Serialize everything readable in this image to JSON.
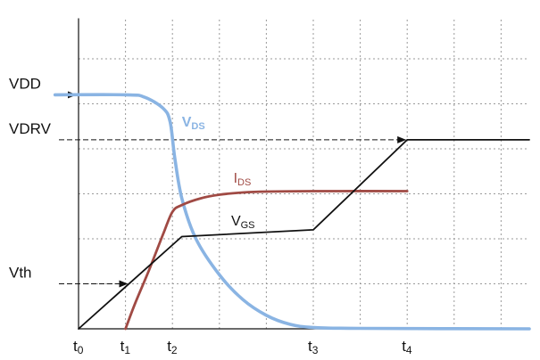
{
  "chart_data": {
    "type": "line",
    "title": "",
    "xlabel": "",
    "ylabel": "",
    "grid": true,
    "xlim": [
      0,
      9.6
    ],
    "ylim": [
      0,
      6.9
    ],
    "x_ticks": [
      {
        "label": "t",
        "sub": "0",
        "x": 0
      },
      {
        "label": "t",
        "sub": "1",
        "x": 1
      },
      {
        "label": "t",
        "sub": "2",
        "x": 2
      },
      {
        "label": "t",
        "sub": "3",
        "x": 5
      },
      {
        "label": "t",
        "sub": "4",
        "x": 7
      }
    ],
    "y_levels": [
      {
        "label": "VDD",
        "y": 5.2,
        "arrow": true,
        "guide": false
      },
      {
        "label": "VDRV",
        "y": 4.2,
        "arrow": false,
        "guide": true
      },
      {
        "label": "Vth",
        "y": 1.0,
        "arrow": true,
        "guide": true
      }
    ],
    "series": [
      {
        "name": "V",
        "sub": "DS",
        "color": "#8ab4e3",
        "label_at": [
          2.2,
          4.5
        ],
        "points": [
          [
            -0.5,
            5.2
          ],
          [
            1.0,
            5.2
          ],
          [
            1.4,
            5.15
          ],
          [
            1.8,
            4.9
          ],
          [
            1.95,
            4.6
          ],
          [
            2.05,
            3.8
          ],
          [
            2.2,
            2.9
          ],
          [
            2.5,
            2.0
          ],
          [
            3.0,
            1.2
          ],
          [
            3.5,
            0.65
          ],
          [
            4.0,
            0.3
          ],
          [
            4.5,
            0.1
          ],
          [
            5.0,
            0.03
          ],
          [
            6.0,
            0.01
          ],
          [
            9.6,
            0.0
          ]
        ]
      },
      {
        "name": "I",
        "sub": "DS",
        "color": "#a04a44",
        "label_at": [
          3.3,
          3.25
        ],
        "points": [
          [
            1.0,
            0.0
          ],
          [
            1.2,
            0.55
          ],
          [
            1.5,
            1.3
          ],
          [
            1.8,
            2.1
          ],
          [
            2.0,
            2.6
          ],
          [
            2.2,
            2.75
          ],
          [
            2.6,
            2.9
          ],
          [
            3.0,
            2.98
          ],
          [
            3.5,
            3.03
          ],
          [
            4.0,
            3.05
          ],
          [
            5.0,
            3.06
          ],
          [
            7.0,
            3.06
          ]
        ]
      },
      {
        "name": "V",
        "sub": "GS",
        "color": "#111111",
        "label_at": [
          3.25,
          2.3
        ],
        "points": [
          [
            0.0,
            0.0
          ],
          [
            2.2,
            2.05
          ],
          [
            5.0,
            2.2
          ],
          [
            7.0,
            4.2
          ],
          [
            9.6,
            4.2
          ]
        ]
      }
    ]
  }
}
